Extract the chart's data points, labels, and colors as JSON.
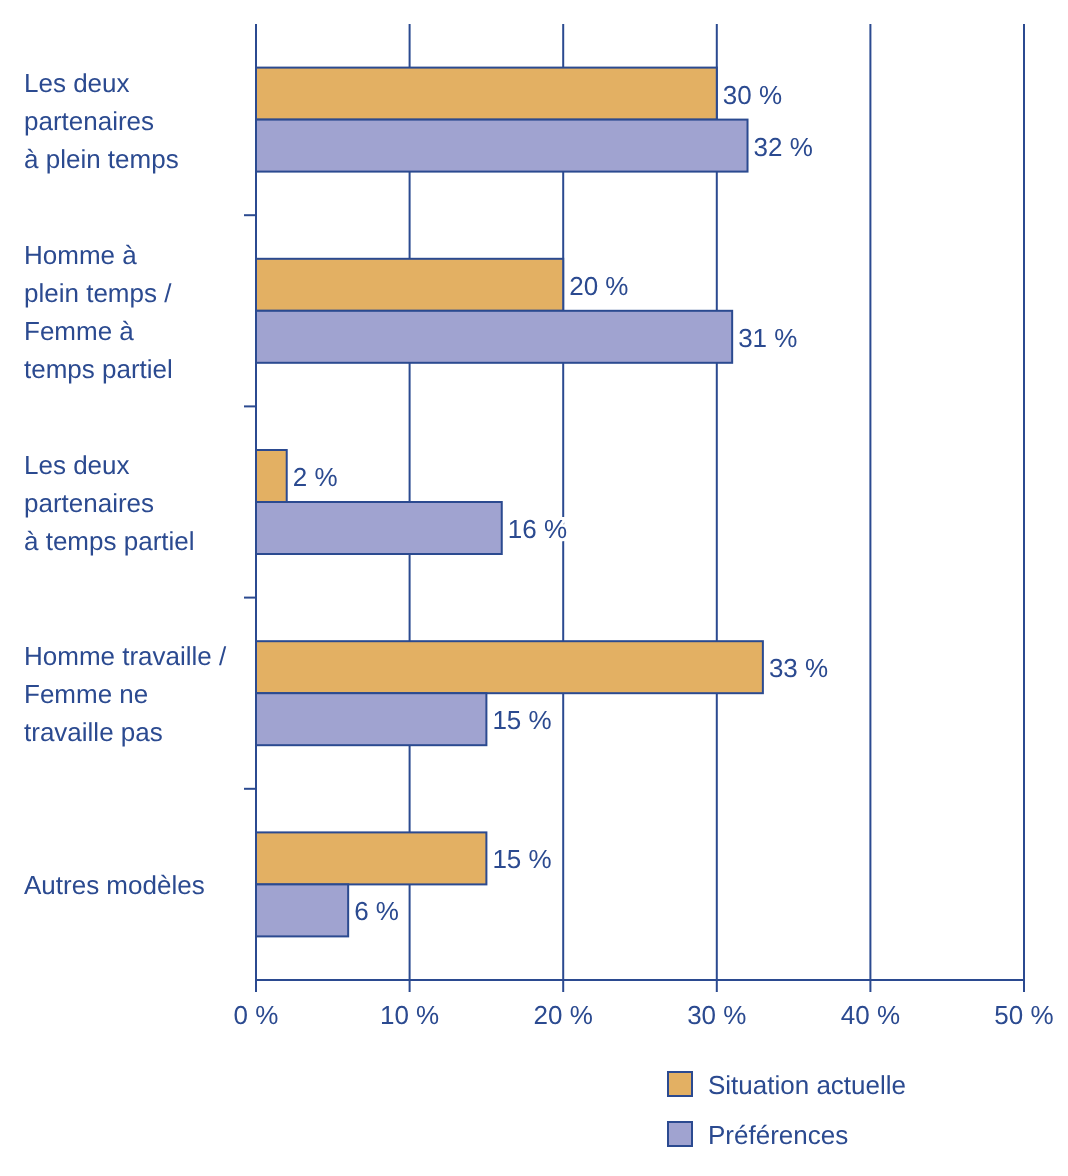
{
  "chart_data": {
    "type": "bar",
    "orientation": "horizontal",
    "categories": [
      "Les deux\npartenaires\nà plein temps",
      "Homme à\nplein temps /\nFemme à\ntemps partiel",
      "Les deux\npartenaires\nà temps partiel",
      "Homme travaille /\nFemme ne\ntravaille pas",
      "Autres modèles"
    ],
    "series": [
      {
        "name": "Situation actuelle",
        "color": "#e3b063",
        "values": [
          30,
          20,
          2,
          33,
          15
        ],
        "value_labels": [
          "30 %",
          "20 %",
          "2 %",
          "33 %",
          "15 %"
        ]
      },
      {
        "name": "Préférences",
        "color": "#a0a3d0",
        "values": [
          32,
          31,
          16,
          15,
          6
        ],
        "value_labels": [
          "32 %",
          "31 %",
          "16 %",
          "15 %",
          "6 %"
        ]
      }
    ],
    "xlim": [
      0,
      50
    ],
    "xticks": [
      {
        "value": 0,
        "label": "0 %"
      },
      {
        "value": 10,
        "label": "10 %"
      },
      {
        "value": 20,
        "label": "20 %"
      },
      {
        "value": 30,
        "label": "30 %"
      },
      {
        "value": 40,
        "label": "40 %"
      },
      {
        "value": 50,
        "label": "50 %"
      }
    ],
    "grid": "x",
    "legend": "bottom"
  }
}
